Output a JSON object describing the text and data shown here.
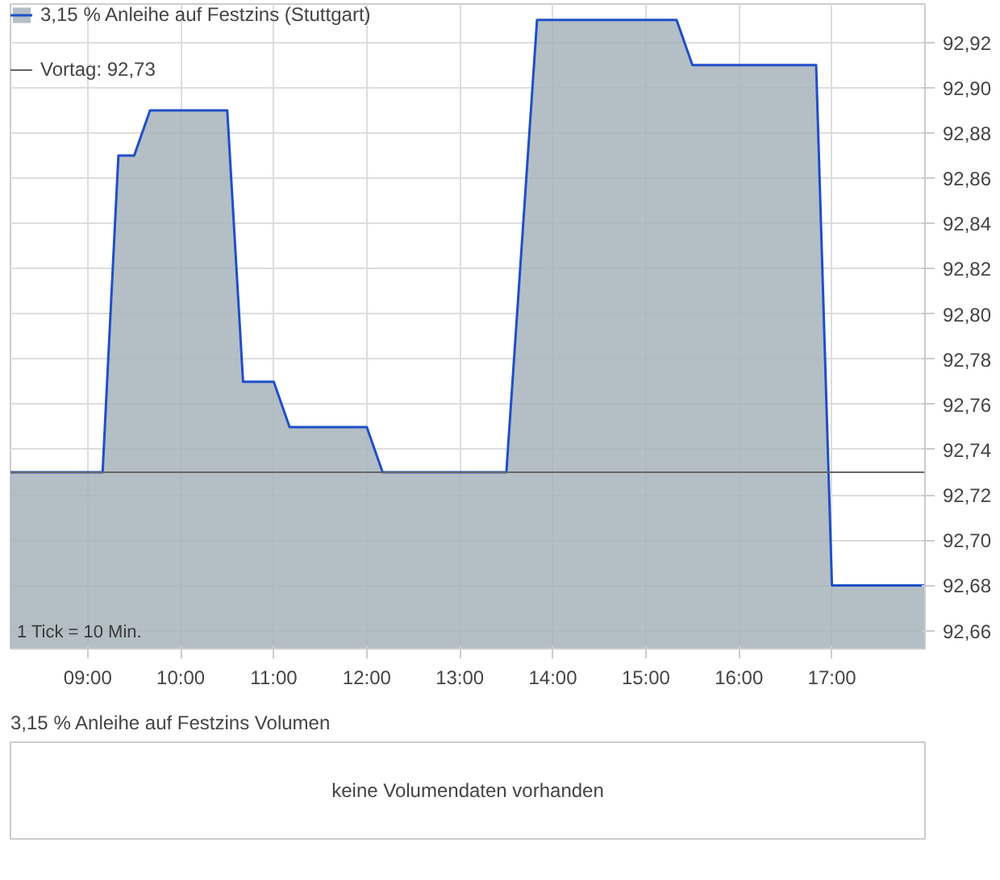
{
  "chart_data": [
    {
      "type": "area",
      "legend": "top left",
      "grid": true,
      "marker": "none",
      "line_style": "solid",
      "x": [
        8.17,
        9.16,
        9.33,
        9.5,
        9.67,
        10.5,
        10.67,
        11.0,
        11.17,
        12.0,
        12.17,
        13.5,
        13.83,
        15.33,
        15.5,
        16.83,
        17.0,
        18.0
      ],
      "series": [
        {
          "name": "3,15 % Anleihe auf Festzins (Stuttgart)",
          "color": "#1f4fc8",
          "values": [
            92.73,
            92.73,
            92.87,
            92.87,
            92.89,
            92.89,
            92.77,
            92.77,
            92.75,
            92.75,
            92.73,
            92.73,
            92.93,
            92.93,
            92.91,
            92.91,
            92.68,
            92.68
          ]
        }
      ],
      "xlim": [
        8.17,
        18.0
      ],
      "ylim": [
        92.652,
        92.937
      ],
      "xticks": [
        {
          "value": 9,
          "label": "09:00"
        },
        {
          "value": 10,
          "label": "10:00"
        },
        {
          "value": 11,
          "label": "11:00"
        },
        {
          "value": 12,
          "label": "12:00"
        },
        {
          "value": 13,
          "label": "13:00"
        },
        {
          "value": 14,
          "label": "14:00"
        },
        {
          "value": 15,
          "label": "15:00"
        },
        {
          "value": 16,
          "label": "16:00"
        },
        {
          "value": 17,
          "label": "17:00"
        }
      ],
      "yticks": [
        {
          "value": 92.66,
          "label": "92,66"
        },
        {
          "value": 92.68,
          "label": "92,68"
        },
        {
          "value": 92.7,
          "label": "92,70"
        },
        {
          "value": 92.72,
          "label": "92,72"
        },
        {
          "value": 92.74,
          "label": "92,74"
        },
        {
          "value": 92.76,
          "label": "92,76"
        },
        {
          "value": 92.78,
          "label": "92,78"
        },
        {
          "value": 92.8,
          "label": "92,80"
        },
        {
          "value": 92.82,
          "label": "92,82"
        },
        {
          "value": 92.84,
          "label": "92,84"
        },
        {
          "value": 92.86,
          "label": "92,86"
        },
        {
          "value": 92.88,
          "label": "92,88"
        },
        {
          "value": 92.9,
          "label": "92,90"
        },
        {
          "value": 92.92,
          "label": "92,92"
        }
      ],
      "ref_lines": [
        {
          "axis": "y",
          "value": 92.73,
          "label": "Vortag: 92,73",
          "color": "#666666"
        }
      ],
      "annotations": [
        "1 Tick = 10 Min."
      ]
    },
    {
      "type": "other",
      "title": "3,15 % Anleihe auf Festzins Volumen",
      "annotations": [
        "keine Volumendaten vorhanden"
      ]
    }
  ]
}
